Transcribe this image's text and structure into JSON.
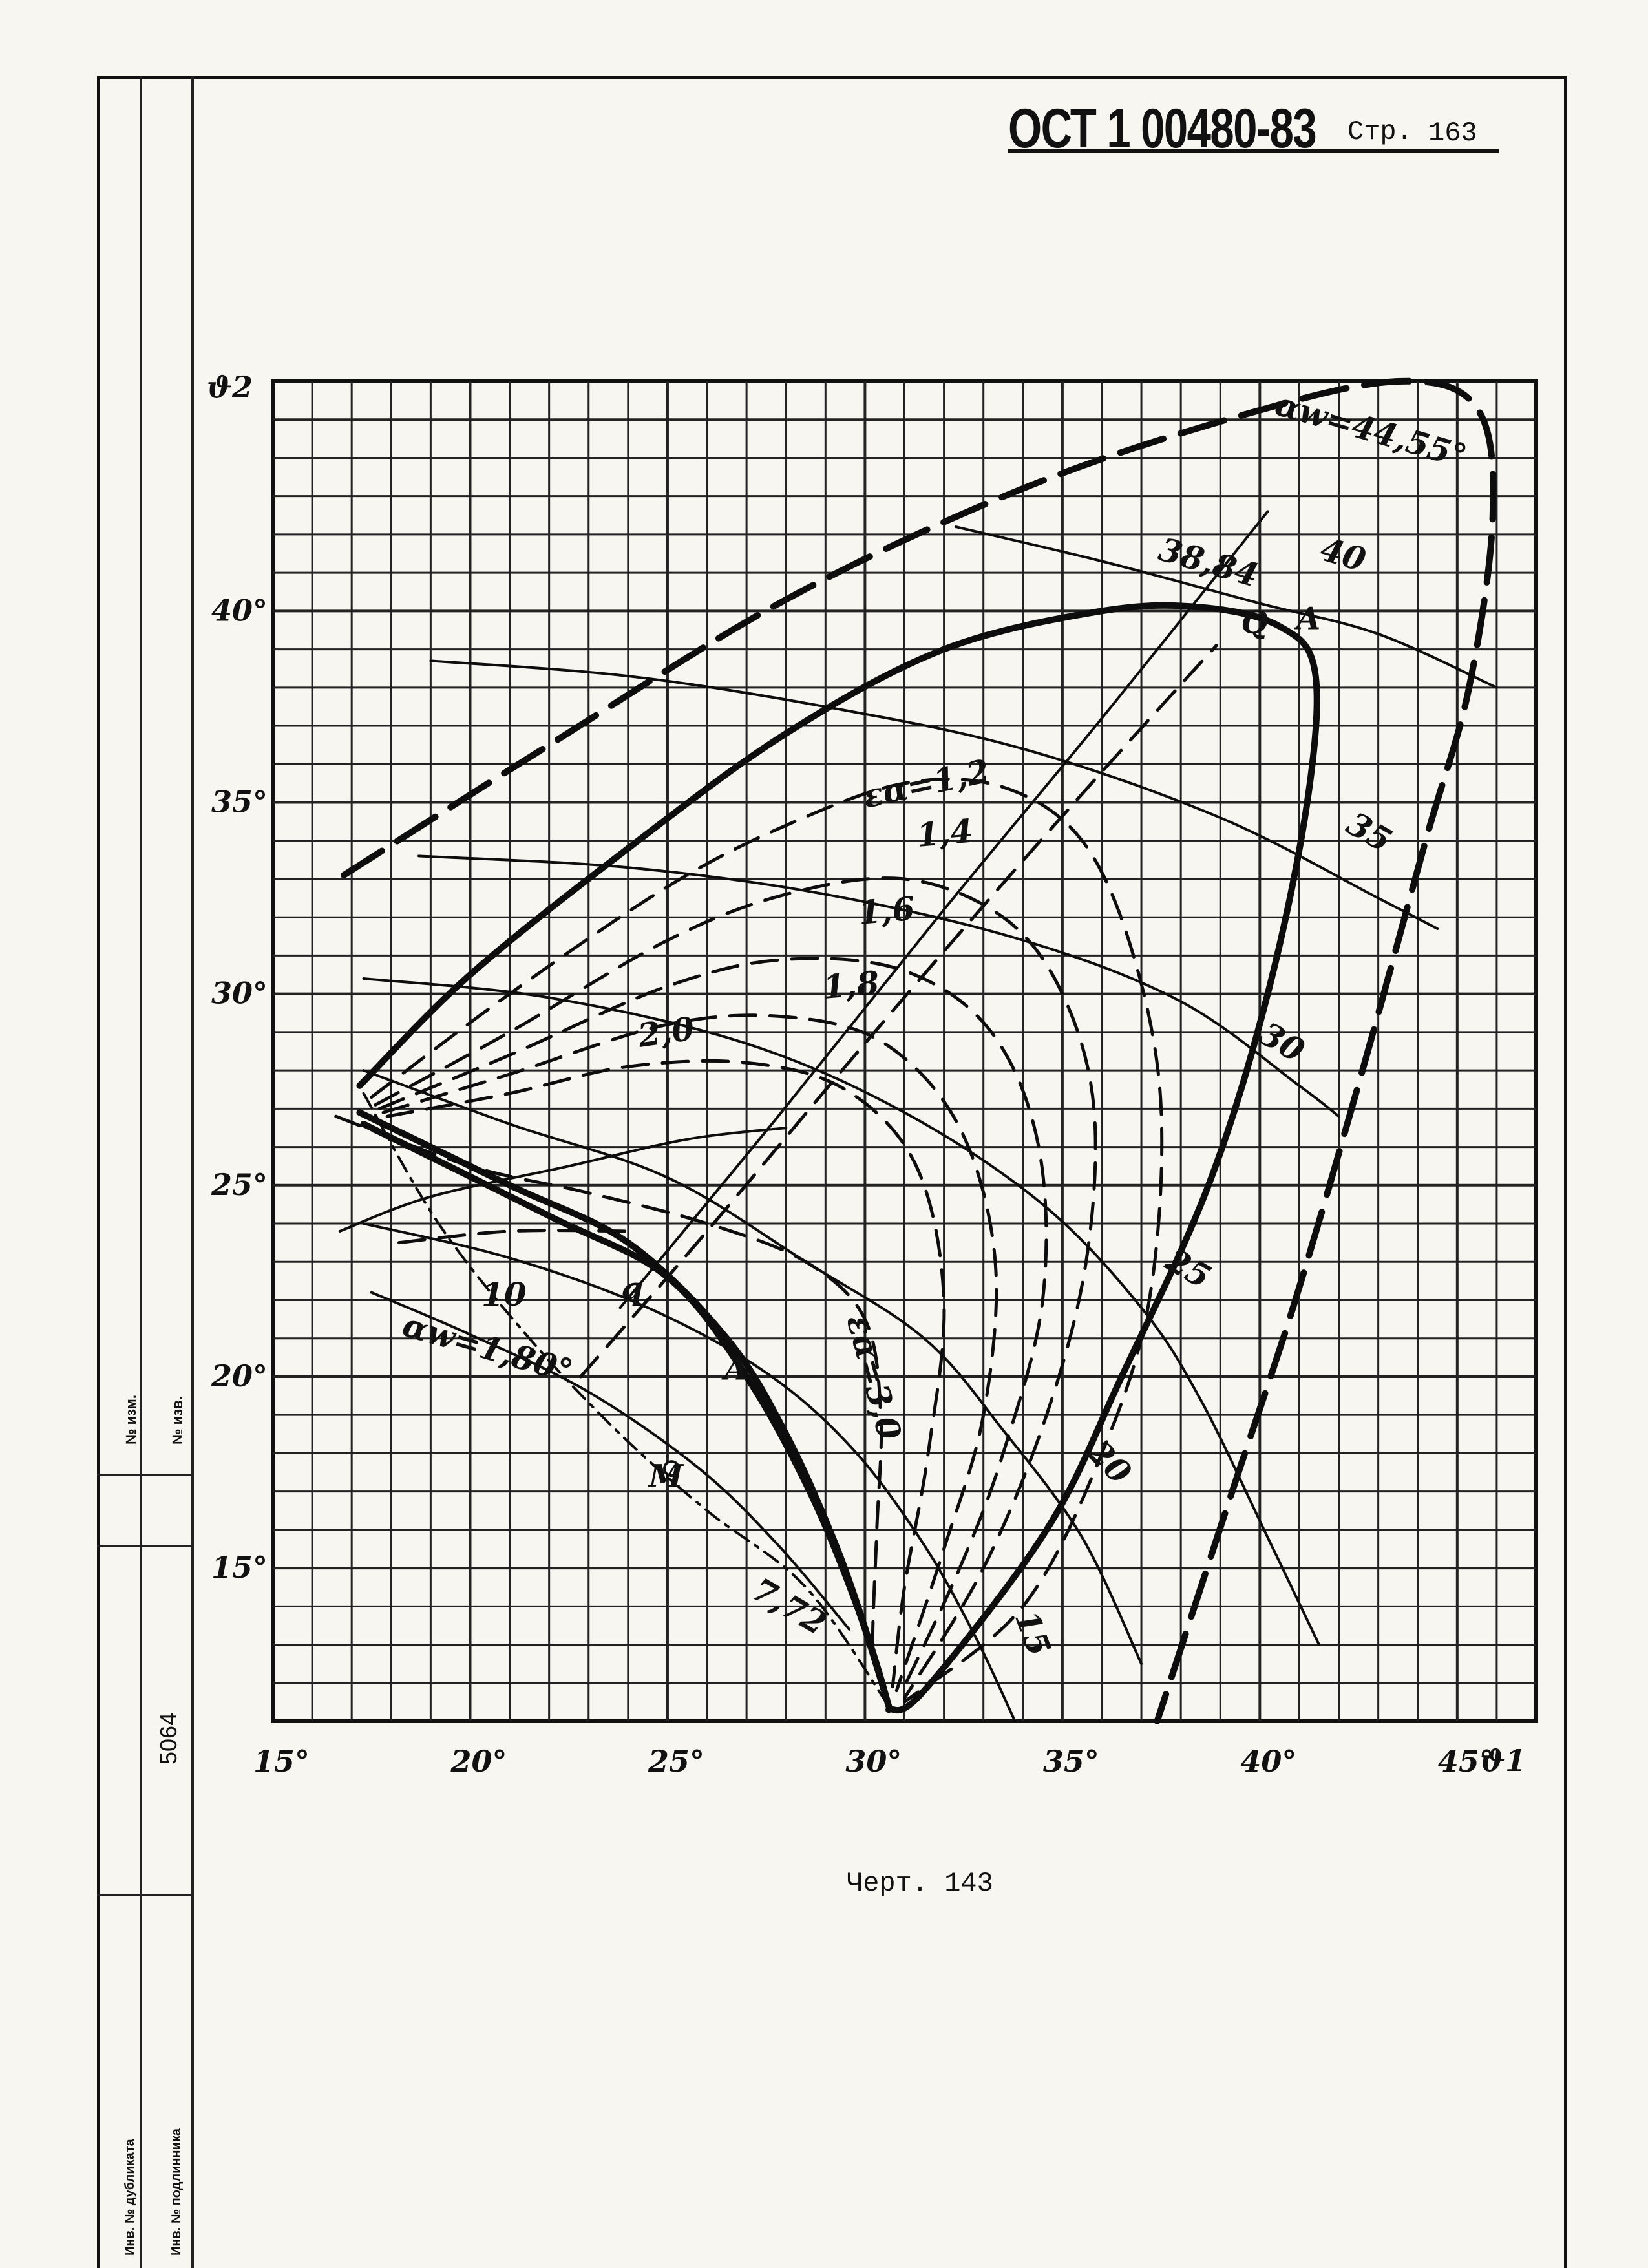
{
  "header": {
    "doc_code": "ОСТ 1 00480-83",
    "page_label": "Стр.",
    "page_number": "163"
  },
  "caption": "Черт. 143",
  "side_table": {
    "change_no": "№ изм.",
    "notice_no": "№ изв.",
    "inv_no": "5064",
    "duplicate_inv": "Инв. № дубликата",
    "original_inv": "Инв. № подлинника"
  },
  "chart_data": {
    "type": "line",
    "title": "",
    "xlabel": "ϑ1",
    "ylabel": "ϑ2",
    "xlim": [
      15,
      47
    ],
    "ylim": [
      11,
      46
    ],
    "grid": true,
    "x_ticks": [
      "15°",
      "20°",
      "25°",
      "30°",
      "35°",
      "40°",
      "45°"
    ],
    "y_ticks": [
      "15°",
      "20°",
      "25°",
      "30°",
      "35°",
      "40°"
    ],
    "x_tick_values": [
      15,
      20,
      25,
      30,
      35,
      40,
      45
    ],
    "y_tick_values": [
      15,
      20,
      25,
      30,
      35,
      40
    ],
    "series": [
      {
        "name": "αw=44,55°",
        "style": "bold-dash",
        "points": [
          [
            16.8,
            33.1
          ],
          [
            22,
            36.5
          ],
          [
            28,
            40.3
          ],
          [
            34,
            43.2
          ],
          [
            39.5,
            45.1
          ],
          [
            43.5,
            46
          ],
          [
            45.5,
            45.3
          ],
          [
            45.9,
            42.5
          ],
          [
            45.3,
            38
          ],
          [
            44.2,
            34
          ],
          [
            42.6,
            28
          ],
          [
            40.9,
            22
          ],
          [
            39.3,
            17
          ],
          [
            37.4,
            11
          ]
        ]
      },
      {
        "name": "38,84",
        "style": "bold",
        "points": [
          [
            17.2,
            27.6
          ],
          [
            20,
            30.5
          ],
          [
            24,
            33.8
          ],
          [
            28,
            36.8
          ],
          [
            32,
            39
          ],
          [
            36,
            40
          ],
          [
            38.5,
            40.1
          ],
          [
            40.5,
            39.6
          ],
          [
            41.4,
            38.4
          ],
          [
            41.2,
            35
          ],
          [
            40.2,
            30
          ],
          [
            38.7,
            25
          ],
          [
            36.5,
            20
          ],
          [
            34.6,
            16
          ],
          [
            31.5,
            11.8
          ],
          [
            30.6,
            11.3
          ]
        ]
      },
      {
        "name": "εα=1,2",
        "style": "dash",
        "points": [
          [
            17.5,
            27.3
          ],
          [
            21,
            30
          ],
          [
            25,
            32.8
          ],
          [
            28,
            34.4
          ],
          [
            31,
            35.5
          ],
          [
            33.5,
            35.4
          ],
          [
            35.5,
            34
          ],
          [
            36.8,
            31
          ],
          [
            37.5,
            27
          ],
          [
            37.2,
            22
          ],
          [
            36,
            18
          ],
          [
            34,
            14
          ],
          [
            31,
            11.5
          ]
        ]
      },
      {
        "name": "1,4",
        "style": "dash",
        "points": [
          [
            17.6,
            27.1
          ],
          [
            21,
            29
          ],
          [
            25,
            31.4
          ],
          [
            28,
            32.6
          ],
          [
            31,
            33
          ],
          [
            33.5,
            32
          ],
          [
            35,
            30
          ],
          [
            35.8,
            27
          ],
          [
            35.6,
            23
          ],
          [
            34.6,
            19
          ],
          [
            33,
            15
          ],
          [
            31,
            11.6
          ]
        ]
      },
      {
        "name": "1,6",
        "style": "dash",
        "points": [
          [
            17.7,
            27
          ],
          [
            21,
            28.4
          ],
          [
            25,
            30.2
          ],
          [
            28,
            30.9
          ],
          [
            31,
            30.6
          ],
          [
            33.2,
            29
          ],
          [
            34.4,
            26
          ],
          [
            34.5,
            22
          ],
          [
            33.5,
            18
          ],
          [
            32.4,
            15
          ],
          [
            30.9,
            11.7
          ]
        ]
      },
      {
        "name": "1,8",
        "style": "dash",
        "points": [
          [
            17.8,
            26.9
          ],
          [
            21,
            27.9
          ],
          [
            25,
            29.2
          ],
          [
            28,
            29.4
          ],
          [
            30.5,
            28.7
          ],
          [
            32.4,
            26.5
          ],
          [
            33.3,
            23
          ],
          [
            33,
            19
          ],
          [
            32,
            15.5
          ],
          [
            30.8,
            11.8
          ]
        ]
      },
      {
        "name": "2,0",
        "style": "dash",
        "points": [
          [
            17.9,
            26.8
          ],
          [
            21,
            27.4
          ],
          [
            24,
            28.1
          ],
          [
            27,
            28.2
          ],
          [
            29.5,
            27.5
          ],
          [
            31.3,
            25.5
          ],
          [
            32,
            22
          ],
          [
            31.6,
            18
          ],
          [
            31,
            14.5
          ],
          [
            30.7,
            11.9
          ]
        ]
      },
      {
        "name": "εα=3,0",
        "style": "dash",
        "points": [
          [
            16.6,
            26.8
          ],
          [
            20,
            25.5
          ],
          [
            23,
            24.8
          ],
          [
            26,
            24
          ],
          [
            28.5,
            23
          ],
          [
            30,
            21.5
          ],
          [
            30.4,
            19
          ],
          [
            30.3,
            16
          ],
          [
            30.2,
            13
          ],
          [
            30.4,
            12
          ]
        ]
      },
      {
        "name": "αw=1,80°",
        "style": "dash-dot",
        "points": [
          [
            17.3,
            27.4
          ],
          [
            19.2,
            24
          ],
          [
            21.5,
            21
          ],
          [
            23.8,
            18.5
          ],
          [
            26,
            16.5
          ],
          [
            28.5,
            14.5
          ],
          [
            30.6,
            11.4
          ]
        ]
      },
      {
        "name": "7,72",
        "style": "bold",
        "points": [
          [
            17.2,
            26.9
          ],
          [
            21,
            25
          ],
          [
            24,
            23.5
          ],
          [
            26.5,
            21
          ],
          [
            28,
            18.5
          ],
          [
            29.3,
            15.5
          ],
          [
            30.2,
            12.8
          ],
          [
            30.6,
            11.4
          ]
        ]
      },
      {
        "name": "q",
        "style": "bold",
        "points": [
          [
            17.3,
            26.6
          ],
          [
            22,
            24.2
          ],
          [
            25,
            22.6
          ],
          [
            27,
            20
          ],
          [
            28.6,
            17
          ],
          [
            29.8,
            14
          ],
          [
            30.6,
            11.4
          ]
        ]
      },
      {
        "name": "40",
        "style": "thin",
        "points": [
          [
            32.3,
            42.2
          ],
          [
            36,
            41.3
          ],
          [
            40,
            40.2
          ],
          [
            43,
            39.4
          ],
          [
            46,
            38
          ]
        ]
      },
      {
        "name": "35",
        "style": "thin",
        "points": [
          [
            19,
            38.7
          ],
          [
            24,
            38.3
          ],
          [
            29,
            37.5
          ],
          [
            34,
            36.4
          ],
          [
            39,
            34.6
          ],
          [
            43,
            32.5
          ],
          [
            44.5,
            31.7
          ]
        ]
      },
      {
        "name": "30",
        "style": "thin",
        "points": [
          [
            18.7,
            33.6
          ],
          [
            24,
            33.3
          ],
          [
            29,
            32.6
          ],
          [
            34,
            31.4
          ],
          [
            38,
            29.8
          ],
          [
            41,
            27.6
          ],
          [
            42,
            26.8
          ]
        ]
      },
      {
        "name": "25",
        "style": "thin",
        "points": [
          [
            17.3,
            30.4
          ],
          [
            22,
            29.9
          ],
          [
            27,
            28.7
          ],
          [
            31,
            26.9
          ],
          [
            34.5,
            24.5
          ],
          [
            37,
            21.8
          ],
          [
            38.5,
            19.4
          ],
          [
            40.2,
            15.8
          ],
          [
            41.5,
            13
          ]
        ]
      },
      {
        "name": "20",
        "style": "thin",
        "points": [
          [
            17.3,
            28
          ],
          [
            21,
            26.6
          ],
          [
            25,
            25.2
          ],
          [
            28.5,
            23
          ],
          [
            31.5,
            21
          ],
          [
            33.5,
            18.6
          ],
          [
            35.5,
            15.8
          ],
          [
            37,
            12.5
          ]
        ]
      },
      {
        "name": "15",
        "style": "thin",
        "points": [
          [
            17.3,
            24
          ],
          [
            21,
            23.1
          ],
          [
            24.5,
            21.8
          ],
          [
            27.5,
            20.1
          ],
          [
            29.7,
            18.1
          ],
          [
            31.5,
            15.6
          ],
          [
            32.8,
            13.2
          ],
          [
            33.8,
            11
          ]
        ]
      },
      {
        "name": "10",
        "style": "thin",
        "points": [
          [
            17.5,
            22.2
          ],
          [
            20,
            21.1
          ],
          [
            23,
            19.6
          ],
          [
            25.8,
            17.6
          ],
          [
            27.8,
            15.6
          ],
          [
            29.6,
            13.4
          ]
        ]
      },
      {
        "name": "AQ",
        "style": "thin",
        "points": [
          [
            23.8,
            21.8
          ],
          [
            27.8,
            26.8
          ],
          [
            32,
            32.2
          ],
          [
            36,
            37.2
          ],
          [
            40.2,
            42.6
          ]
        ]
      },
      {
        "name": "",
        "style": "dash",
        "points": [
          [
            22.8,
            20
          ],
          [
            26,
            23.8
          ],
          [
            29.5,
            28.1
          ],
          [
            33,
            32.3
          ],
          [
            36,
            35.8
          ],
          [
            38.9,
            39.1
          ]
        ]
      },
      {
        "name": "",
        "style": "thin",
        "points": [
          [
            16.7,
            23.8
          ],
          [
            19,
            24.7
          ],
          [
            22.5,
            25.5
          ],
          [
            25.5,
            26.2
          ],
          [
            28,
            26.5
          ]
        ]
      },
      {
        "name": "",
        "style": "dash",
        "points": [
          [
            18.2,
            23.5
          ],
          [
            21,
            23.8
          ],
          [
            24,
            23.8
          ]
        ]
      }
    ],
    "points": [
      {
        "label": "M",
        "x": 25.1,
        "y": 17.6
      },
      {
        "label": "A",
        "x": 27.0,
        "y": 20.4
      },
      {
        "label": "Q",
        "x": 40.1,
        "y": 39.9
      },
      {
        "label": "A",
        "x": 41.5,
        "y": 40.0
      },
      {
        "label": "q",
        "x": 24.4,
        "y": 22.5
      }
    ],
    "annotations": [
      "αw=44,55°",
      "38,84",
      "40",
      "35",
      "30",
      "25",
      "20",
      "15",
      "10",
      "εα=1,2",
      "1,4",
      "1,6",
      "1,8",
      "2,0",
      "εα=3,0",
      "αw=1,80°",
      "7,72",
      "q",
      "A",
      "M",
      "Q",
      "A"
    ]
  }
}
